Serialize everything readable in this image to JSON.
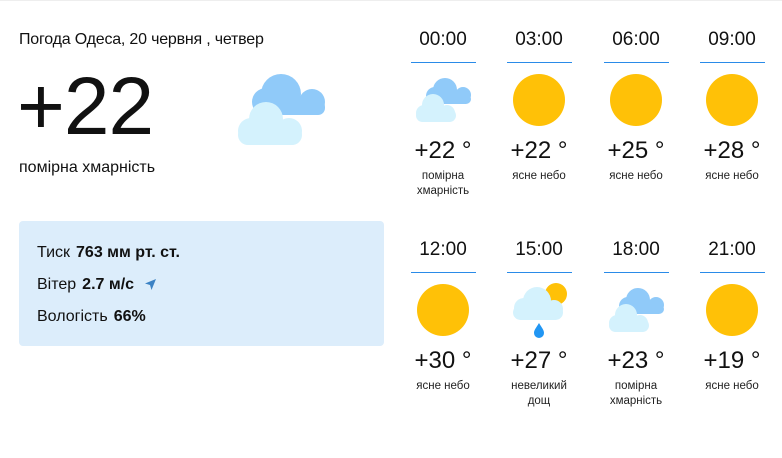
{
  "current": {
    "title": "Погода Одеса, 20 червня , четвер",
    "temperature": "+22",
    "icon": "partly-cloudy-icon",
    "description": "помірна хмарність",
    "details": [
      {
        "label": "Тиск",
        "value": "763 мм рт. ст."
      },
      {
        "label": "Вітер",
        "value": "2.7 м/с",
        "icon": "wind-direction-arrow-icon"
      },
      {
        "label": "Вологість",
        "value": "66%"
      }
    ]
  },
  "hourly": [
    {
      "time": "00:00",
      "temp": "+22 °",
      "desc": "помірна хмарність",
      "icon": "clouds"
    },
    {
      "time": "03:00",
      "temp": "+22 °",
      "desc": "ясне небо",
      "icon": "sun"
    },
    {
      "time": "06:00",
      "temp": "+25 °",
      "desc": "ясне небо",
      "icon": "sun"
    },
    {
      "time": "09:00",
      "temp": "+28 °",
      "desc": "ясне небо",
      "icon": "sun"
    },
    {
      "time": "12:00",
      "temp": "+30 °",
      "desc": "ясне небо",
      "icon": "sun"
    },
    {
      "time": "15:00",
      "temp": "+27 °",
      "desc": "невеликий дощ",
      "icon": "rain"
    },
    {
      "time": "18:00",
      "temp": "+23 °",
      "desc": "помірна хмарність",
      "icon": "clouds"
    },
    {
      "time": "21:00",
      "temp": "+19 °",
      "desc": "ясне небо",
      "icon": "sun"
    }
  ],
  "colors": {
    "sun": "#ffc107",
    "cloud_dark": "#90caf9",
    "cloud_light": "#d4f2fd",
    "rain": "#2196f3",
    "accent_line": "#2a8be8",
    "panel": "#dcedfb"
  }
}
